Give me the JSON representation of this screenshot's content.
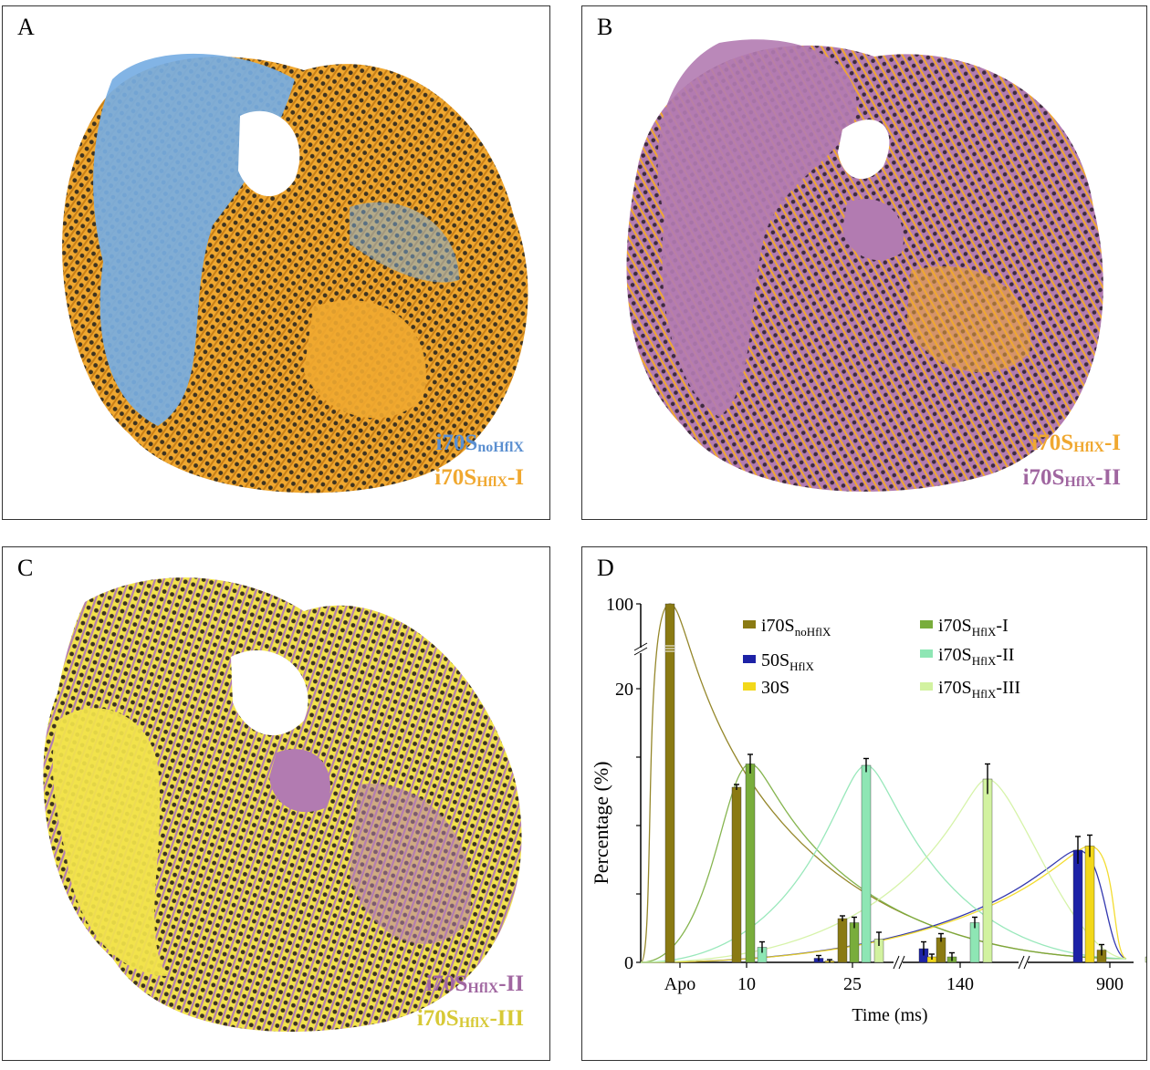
{
  "colors": {
    "blue_map": "#77aee3",
    "orange_map": "#f0a830",
    "purple_map": "#b27bb1",
    "yellow_map": "#f2e34b",
    "i70S_noHflX": "#8a7a13",
    "i70S_HflX_I": "#79ad3c",
    "i70S_HflX_II": "#8ee6b4",
    "i70S_HflX_III": "#d2f2a0",
    "50S_HflX": "#1d22a6",
    "30S": "#f2d81a"
  },
  "panels": {
    "a": {
      "letter": "A",
      "legend": [
        {
          "main": "i70S",
          "sub": "noHflX",
          "suffix": "",
          "color": "#5b8fd0"
        },
        {
          "main": "i70S",
          "sub": "HflX",
          "suffix": "-I",
          "color": "#f0a830"
        }
      ]
    },
    "b": {
      "letter": "B",
      "legend": [
        {
          "main": "i70S",
          "sub": "HflX",
          "suffix": "-I",
          "color": "#f0a830"
        },
        {
          "main": "i70S",
          "sub": "HflX",
          "suffix": "-II",
          "color": "#a066a0"
        }
      ]
    },
    "c": {
      "letter": "C",
      "legend": [
        {
          "main": "i70S",
          "sub": "HflX",
          "suffix": "-II",
          "color": "#a066a0"
        },
        {
          "main": "i70S",
          "sub": "HflX",
          "suffix": "-III",
          "color": "#d7c936"
        }
      ]
    },
    "d": {
      "letter": "D"
    }
  },
  "chart_data": {
    "type": "bar",
    "xlabel": "Time (ms)",
    "ylabel": "Percentage (%)",
    "categories": [
      "Apo",
      "10",
      "25",
      "140",
      "900"
    ],
    "y_tick_labels": [
      "0",
      "20",
      "100"
    ],
    "ylim": [
      0,
      100
    ],
    "axis_break": "y between 20 and 100; x between 25 and 140 and between 140 and 900",
    "series": [
      {
        "name": "i70S_noHflX",
        "legend_main": "i70S",
        "legend_sub": "noHflX",
        "legend_suffix": "",
        "color": "#8a7a13",
        "values": [
          100,
          12.8,
          3.2,
          1.8,
          0.9
        ],
        "errors": [
          0,
          0.2,
          0.2,
          0.3,
          0.4
        ]
      },
      {
        "name": "50S_HflX",
        "legend_main": "50S",
        "legend_sub": "HflX",
        "legend_suffix": "",
        "color": "#1d22a6",
        "values": [
          0,
          0,
          0.3,
          1.0,
          8.2
        ],
        "errors": [
          0,
          0,
          0.2,
          0.5,
          1.0
        ]
      },
      {
        "name": "30S",
        "legend_main": "30S",
        "legend_sub": "",
        "legend_suffix": "",
        "color": "#f2d81a",
        "values": [
          0,
          0,
          0.1,
          0.4,
          8.5
        ],
        "errors": [
          0,
          0,
          0.1,
          0.2,
          0.8
        ]
      },
      {
        "name": "i70S_HflX-I",
        "legend_main": "i70S",
        "legend_sub": "HflX",
        "legend_suffix": "-I",
        "color": "#79ad3c",
        "values": [
          0,
          14.5,
          2.9,
          0.4,
          0
        ],
        "errors": [
          0,
          0.7,
          0.4,
          0.3,
          0
        ]
      },
      {
        "name": "i70S_HflX-II",
        "legend_main": "i70S",
        "legend_sub": "HflX",
        "legend_suffix": "-II",
        "color": "#8ee6b4",
        "values": [
          0,
          1.1,
          14.4,
          2.9,
          0
        ],
        "errors": [
          0,
          0.4,
          0.5,
          0.4,
          0
        ]
      },
      {
        "name": "i70S_HflX-III",
        "legend_main": "i70S",
        "legend_sub": "HflX",
        "legend_suffix": "-III",
        "color": "#d2f2a0",
        "values": [
          0,
          0,
          1.7,
          13.4,
          0.4
        ],
        "errors": [
          0,
          0,
          0.5,
          1.1,
          0.3
        ]
      }
    ]
  }
}
